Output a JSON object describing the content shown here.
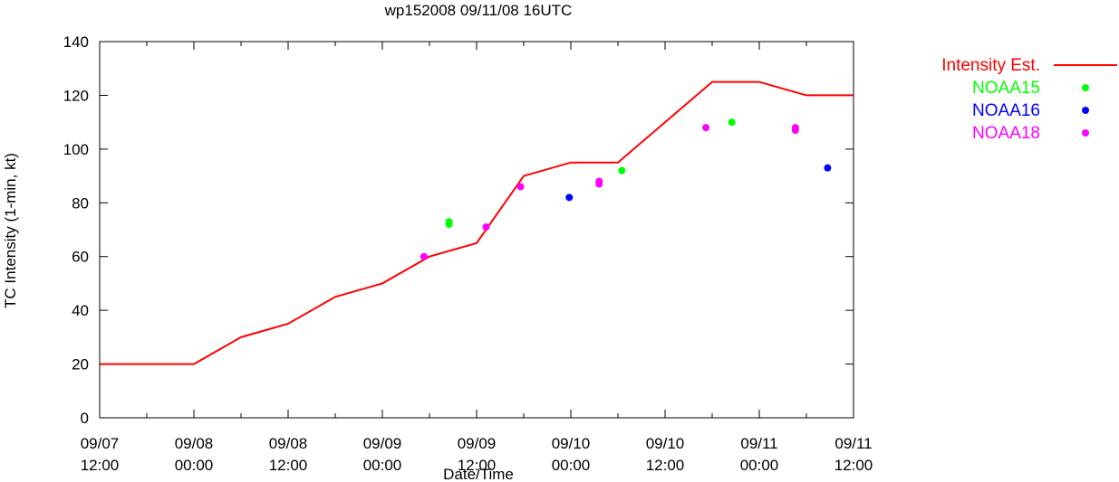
{
  "chart_data": {
    "type": "line",
    "title": "wp152008 09/11/08 16UTC",
    "xlabel": "Date/Time",
    "ylabel": "TC Intensity (1-min, kt)",
    "ylim": [
      0,
      140
    ],
    "yticks": [
      0,
      20,
      40,
      60,
      80,
      100,
      120,
      140
    ],
    "xlim_hours": [
      0,
      96
    ],
    "xticks": [
      {
        "h": 0,
        "date": "09/07",
        "time": "12:00"
      },
      {
        "h": 12,
        "date": "09/08",
        "time": "00:00"
      },
      {
        "h": 24,
        "date": "09/08",
        "time": "12:00"
      },
      {
        "h": 36,
        "date": "09/09",
        "time": "00:00"
      },
      {
        "h": 48,
        "date": "09/09",
        "time": "12:00"
      },
      {
        "h": 60,
        "date": "09/10",
        "time": "00:00"
      },
      {
        "h": 72,
        "date": "09/10",
        "time": "12:00"
      },
      {
        "h": 84,
        "date": "09/11",
        "time": "00:00"
      },
      {
        "h": 96,
        "date": "09/11",
        "time": "12:00"
      }
    ],
    "legend_position": "top-right",
    "grid": false,
    "series": [
      {
        "name": "Intensity Est.",
        "kind": "line",
        "color": "#ff0000",
        "points": [
          [
            0,
            20
          ],
          [
            12,
            20
          ],
          [
            18,
            30
          ],
          [
            24,
            35
          ],
          [
            30,
            45
          ],
          [
            36,
            50
          ],
          [
            42,
            60
          ],
          [
            48,
            65
          ],
          [
            54,
            90
          ],
          [
            60,
            95
          ],
          [
            66,
            95
          ],
          [
            72,
            110
          ],
          [
            78,
            125
          ],
          [
            84,
            125
          ],
          [
            90,
            120
          ],
          [
            96,
            120
          ]
        ]
      },
      {
        "name": "NOAA15",
        "kind": "scatter",
        "color": "#00ff00",
        "points": [
          [
            44.5,
            72
          ],
          [
            44.5,
            73
          ],
          [
            66.5,
            92
          ],
          [
            80.5,
            110
          ]
        ]
      },
      {
        "name": "NOAA16",
        "kind": "scatter",
        "color": "#0000ff",
        "points": [
          [
            59.8,
            82
          ],
          [
            92.7,
            93
          ]
        ]
      },
      {
        "name": "NOAA18",
        "kind": "scatter",
        "color": "#ff00ff",
        "points": [
          [
            41.3,
            60
          ],
          [
            49.2,
            71
          ],
          [
            53.6,
            86
          ],
          [
            63.6,
            87
          ],
          [
            63.6,
            88
          ],
          [
            77.2,
            108
          ],
          [
            88.6,
            107
          ],
          [
            88.6,
            108
          ]
        ]
      }
    ]
  }
}
